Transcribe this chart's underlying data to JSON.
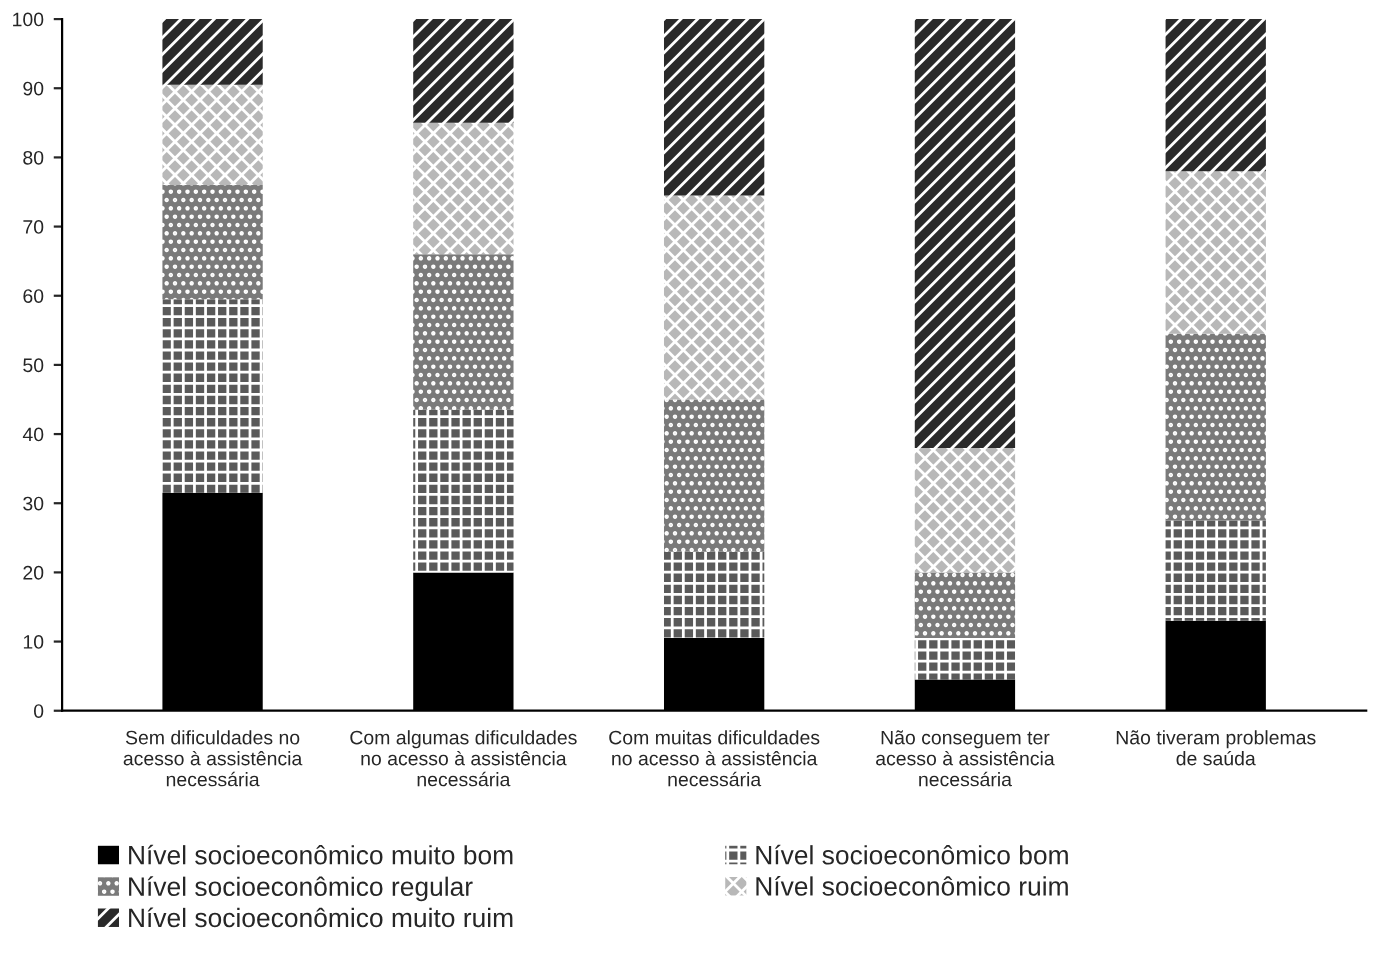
{
  "chart_data": {
    "type": "bar",
    "stacked": true,
    "categories": [
      "Sem dificuldades no\nacesso à assistência\nnecessária",
      "Com algumas dificuldades\nno acesso à assistência\nnecessária",
      "Com muitas dificuldades\nno acesso à assistência\nnecessária",
      "Não conseguem ter\nacesso à assistência\nnecessária",
      "Não tiveram problemas\nde saúda"
    ],
    "series": [
      {
        "name": "Nível socioeconômico muito bom",
        "color": "#000000",
        "values": [
          31.5,
          20,
          10.5,
          4.5,
          13
        ]
      },
      {
        "name": "Nível socioeconômico bom",
        "color": "#5a5a5a",
        "values": [
          28,
          23.5,
          12.5,
          6,
          14.5
        ]
      },
      {
        "name": "Nível socioeconômico regular",
        "color": "#7a7a7a",
        "values": [
          16.5,
          22.5,
          22,
          9.5,
          27
        ]
      },
      {
        "name": "Nível socioeconômico ruim",
        "color": "#b8b8b8",
        "values": [
          14.5,
          19,
          29.5,
          18,
          23.5
        ]
      },
      {
        "name": "Nível socioeconômico muito ruim",
        "color": "#2a2a2a",
        "values": [
          9.5,
          15,
          25.5,
          62,
          22
        ]
      }
    ],
    "ylim": [
      0,
      100
    ],
    "yticks": [
      0,
      10,
      20,
      30,
      40,
      50,
      60,
      70,
      80,
      90,
      100
    ],
    "legend": "bottom",
    "grid": false
  }
}
